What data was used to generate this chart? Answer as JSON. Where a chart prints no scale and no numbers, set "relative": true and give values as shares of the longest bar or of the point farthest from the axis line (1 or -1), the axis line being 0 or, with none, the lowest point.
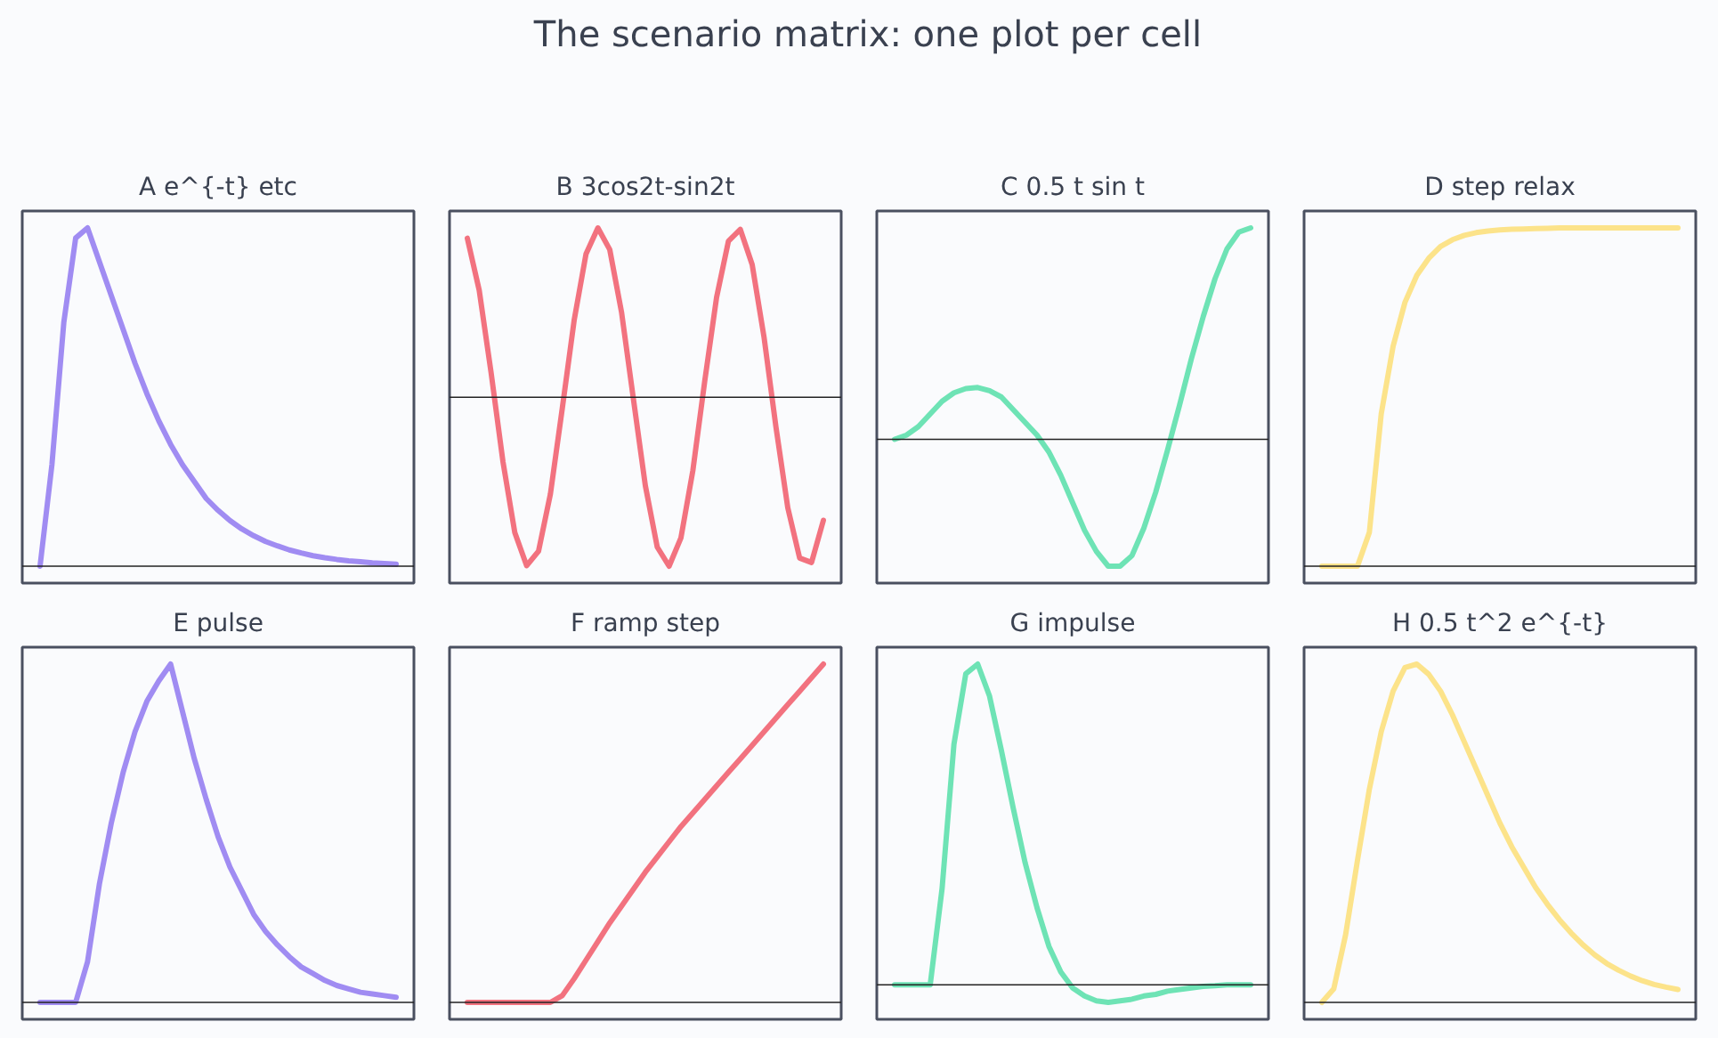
{
  "chart_data": [
    {
      "type": "other",
      "title": "The scenario matrix: one plot per cell"
    },
    {
      "type": "line",
      "title": "A e^{-t} etc",
      "relative": true,
      "categories": [
        null,
        null,
        null,
        null,
        null,
        null,
        null,
        null,
        null,
        null,
        null,
        null,
        null,
        null,
        null,
        null,
        null,
        null,
        null,
        null,
        null,
        null,
        null,
        null,
        null,
        null,
        null,
        null,
        null,
        null,
        null
      ],
      "series": [
        {
          "color": "#a08cf2",
          "values": [
            0,
            0.3,
            0.72,
            0.97,
            1.0,
            0.9,
            0.8,
            0.7,
            0.6,
            0.51,
            0.43,
            0.36,
            0.3,
            0.25,
            0.2,
            0.165,
            0.135,
            0.11,
            0.09,
            0.073,
            0.06,
            0.048,
            0.039,
            0.031,
            0.025,
            0.02,
            0.016,
            0.013,
            0.01,
            0.008,
            0.006
          ]
        }
      ]
    },
    {
      "type": "line",
      "title": "B 3cos2t-sin2t",
      "relative": true,
      "categories": [
        null,
        null,
        null,
        null,
        null,
        null,
        null,
        null,
        null,
        null,
        null,
        null,
        null,
        null,
        null,
        null,
        null,
        null,
        null,
        null,
        null,
        null,
        null,
        null,
        null,
        null,
        null,
        null,
        null,
        null,
        null
      ],
      "series": [
        {
          "color": "#f2727f",
          "values": [
            0.939,
            0.632,
            0.146,
            -0.38,
            -0.8,
            -0.995,
            -0.909,
            -0.571,
            -0.066,
            0.454,
            0.846,
            1.0,
            0.872,
            0.499,
            -0.014,
            -0.523,
            -0.885,
            -0.998,
            -0.83,
            -0.434,
            0.094,
            0.589,
            0.922,
            0.991,
            0.783,
            0.354,
            -0.174,
            -0.653,
            -0.95,
            -0.976,
            -0.727
          ]
        }
      ]
    },
    {
      "type": "line",
      "title": "C 0.5 t sin t",
      "relative": true,
      "categories": [
        null,
        null,
        null,
        null,
        null,
        null,
        null,
        null,
        null,
        null,
        null,
        null,
        null,
        null,
        null,
        null,
        null,
        null,
        null,
        null,
        null,
        null,
        null,
        null,
        null,
        null,
        null,
        null,
        null,
        null,
        null
      ],
      "series": [
        {
          "color": "#6ee3b5",
          "values": [
            0,
            0.02,
            0.06,
            0.12,
            0.18,
            0.22,
            0.24,
            0.245,
            0.23,
            0.2,
            0.14,
            0.08,
            0.02,
            -0.06,
            -0.17,
            -0.3,
            -0.43,
            -0.53,
            -0.6,
            -0.6,
            -0.55,
            -0.42,
            -0.25,
            -0.05,
            0.16,
            0.38,
            0.58,
            0.76,
            0.9,
            0.98,
            1.0
          ]
        }
      ]
    },
    {
      "type": "line",
      "title": "D step relax",
      "relative": true,
      "categories": [
        null,
        null,
        null,
        null,
        null,
        null,
        null,
        null,
        null,
        null,
        null,
        null,
        null,
        null,
        null,
        null,
        null,
        null,
        null,
        null,
        null,
        null,
        null,
        null,
        null,
        null,
        null,
        null,
        null,
        null,
        null
      ],
      "series": [
        {
          "color": "#fce38a",
          "values": [
            0,
            0,
            0,
            0,
            0.1,
            0.45,
            0.65,
            0.78,
            0.86,
            0.91,
            0.945,
            0.965,
            0.978,
            0.986,
            0.991,
            0.994,
            0.996,
            0.997,
            0.998,
            0.999,
            1,
            1,
            1,
            1,
            1,
            1,
            1,
            1,
            1,
            1,
            1
          ]
        }
      ]
    },
    {
      "type": "line",
      "title": "E pulse",
      "relative": true,
      "categories": [
        null,
        null,
        null,
        null,
        null,
        null,
        null,
        null,
        null,
        null,
        null,
        null,
        null,
        null,
        null,
        null,
        null,
        null,
        null,
        null,
        null,
        null,
        null,
        null,
        null,
        null,
        null,
        null,
        null,
        null,
        null
      ],
      "series": [
        {
          "color": "#a08cf2",
          "values": [
            0,
            0,
            0,
            0,
            0.12,
            0.35,
            0.53,
            0.68,
            0.8,
            0.89,
            0.95,
            1.0,
            0.86,
            0.72,
            0.6,
            0.49,
            0.4,
            0.33,
            0.26,
            0.21,
            0.17,
            0.135,
            0.105,
            0.085,
            0.065,
            0.05,
            0.04,
            0.03,
            0.025,
            0.02,
            0.015
          ]
        }
      ]
    },
    {
      "type": "line",
      "title": "F ramp step",
      "relative": true,
      "categories": [
        null,
        null,
        null,
        null,
        null,
        null,
        null,
        null,
        null,
        null,
        null,
        null,
        null,
        null,
        null,
        null,
        null,
        null,
        null,
        null,
        null,
        null,
        null,
        null,
        null,
        null,
        null,
        null,
        null,
        null,
        null
      ],
      "series": [
        {
          "color": "#f2727f",
          "values": [
            0,
            0,
            0,
            0,
            0,
            0,
            0,
            0,
            0.02,
            0.07,
            0.125,
            0.18,
            0.235,
            0.285,
            0.335,
            0.385,
            0.43,
            0.475,
            0.52,
            0.56,
            0.6,
            0.64,
            0.68,
            0.72,
            0.76,
            0.8,
            0.84,
            0.88,
            0.92,
            0.96,
            1.0
          ]
        }
      ]
    },
    {
      "type": "line",
      "title": "G impulse",
      "relative": true,
      "categories": [
        null,
        null,
        null,
        null,
        null,
        null,
        null,
        null,
        null,
        null,
        null,
        null,
        null,
        null,
        null,
        null,
        null,
        null,
        null,
        null,
        null,
        null,
        null,
        null,
        null,
        null,
        null,
        null,
        null,
        null,
        null
      ],
      "series": [
        {
          "color": "#6ee3b5",
          "values": [
            0,
            0,
            0,
            0,
            0.3,
            0.75,
            0.97,
            1.0,
            0.9,
            0.73,
            0.55,
            0.38,
            0.24,
            0.12,
            0.04,
            -0.01,
            -0.035,
            -0.05,
            -0.055,
            -0.05,
            -0.045,
            -0.035,
            -0.03,
            -0.02,
            -0.015,
            -0.01,
            -0.005,
            -0.003,
            0,
            0,
            0
          ]
        }
      ]
    },
    {
      "type": "line",
      "title": "H 0.5 t^2 e^{-t}",
      "relative": true,
      "categories": [
        null,
        null,
        null,
        null,
        null,
        null,
        null,
        null,
        null,
        null,
        null,
        null,
        null,
        null,
        null,
        null,
        null,
        null,
        null,
        null,
        null,
        null,
        null,
        null,
        null,
        null,
        null,
        null,
        null,
        null,
        null
      ],
      "series": [
        {
          "color": "#fce38a",
          "values": [
            0,
            0.04,
            0.2,
            0.42,
            0.63,
            0.8,
            0.92,
            0.99,
            1.0,
            0.97,
            0.92,
            0.85,
            0.77,
            0.69,
            0.61,
            0.53,
            0.46,
            0.4,
            0.34,
            0.29,
            0.245,
            0.205,
            0.17,
            0.14,
            0.115,
            0.095,
            0.078,
            0.064,
            0.053,
            0.045,
            0.038
          ]
        }
      ]
    }
  ]
}
